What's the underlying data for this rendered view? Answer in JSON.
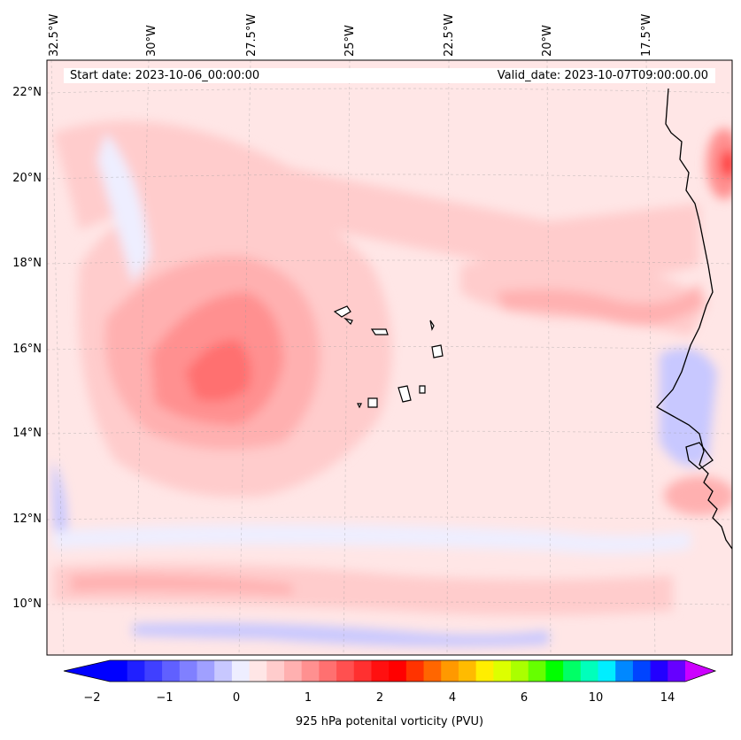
{
  "map": {
    "title_start": "Start date: 2023-10-06_00:00:00",
    "title_valid": "Valid_date: 2023-10-07T09:00:00.00",
    "variable_label": "925 hPa potenital vorticity (PVU)",
    "lon_labels": [
      "32.5°W",
      "30°W",
      "27.5°W",
      "25°W",
      "22.5°W",
      "20°W",
      "17.5°W"
    ],
    "lat_labels": [
      "22°N",
      "20°N",
      "18°N",
      "16°N",
      "14°N",
      "12°N",
      "10°N"
    ],
    "colorbar": {
      "tick_labels": [
        "−2",
        "−1",
        "0",
        "1",
        "2",
        "4",
        "6",
        "10",
        "14"
      ],
      "levels": [
        -2,
        -1.75,
        -1.5,
        -1.25,
        -1,
        -0.75,
        -0.5,
        -0.25,
        0,
        0.25,
        0.5,
        0.75,
        1,
        1.25,
        1.5,
        1.75,
        2,
        2.5,
        3,
        3.5,
        4,
        4.5,
        5,
        5.5,
        6,
        7,
        8,
        9,
        10,
        11,
        12,
        13,
        14,
        15
      ],
      "colors": [
        "#0000ff",
        "#2020ff",
        "#4040ff",
        "#6060ff",
        "#8080ff",
        "#a0a0ff",
        "#c8c8ff",
        "#eeeeff",
        "#ffe6e6",
        "#ffcccc",
        "#ffb0b0",
        "#ff9090",
        "#ff7070",
        "#ff5050",
        "#ff3030",
        "#ff1010",
        "#ff0000",
        "#ff3300",
        "#ff6600",
        "#ff9900",
        "#ffbb00",
        "#ffee00",
        "#ddff00",
        "#aaff00",
        "#66ff00",
        "#00ff00",
        "#00ff66",
        "#00ffbb",
        "#00eeff",
        "#0088ff",
        "#0044ff",
        "#2200ff",
        "#6600ff"
      ],
      "extend_low_color": "#0000ff",
      "extend_high_color": "#cc00ff"
    }
  }
}
